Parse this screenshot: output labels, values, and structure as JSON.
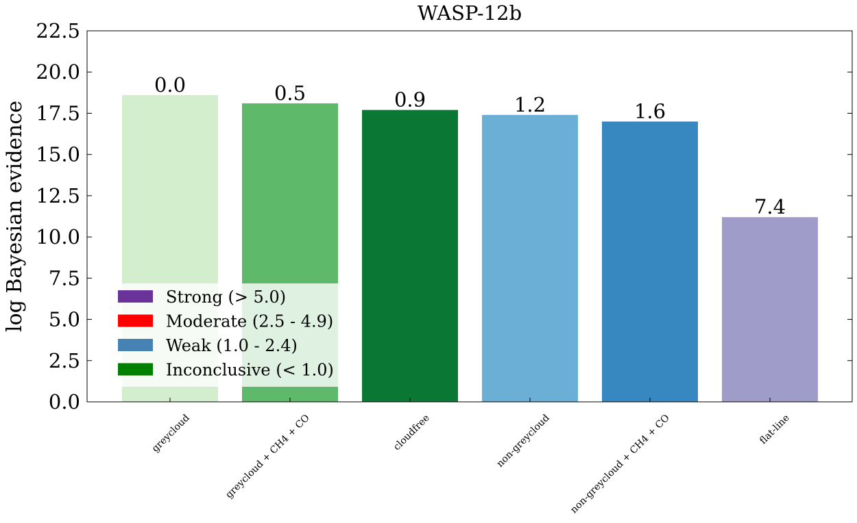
{
  "chart_data": {
    "type": "bar",
    "title": "WASP-12b",
    "xlabel": "",
    "ylabel": "log Bayesian evidence",
    "ylim": [
      0,
      22.5
    ],
    "yticks": [
      "0.0",
      "2.5",
      "5.0",
      "7.5",
      "10.0",
      "12.5",
      "15.0",
      "17.5",
      "20.0",
      "22.5"
    ],
    "categories": [
      "greycloud",
      "greycloud + CH4 + CO",
      "cloudfree",
      "non-greycloud",
      "non-greycloud + CH4 + CO",
      "flat-line"
    ],
    "values": [
      18.6,
      18.1,
      17.7,
      17.4,
      17.0,
      11.2
    ],
    "bar_labels": [
      "0.0",
      "0.5",
      "0.9",
      "1.2",
      "1.6",
      "7.4"
    ],
    "bar_colors": [
      "#d3eecd",
      "#5fb96b",
      "#0b7734",
      "#6baed6",
      "#3788c1",
      "#9f9cca"
    ],
    "legend": {
      "position": "lower-left",
      "entries": [
        {
          "label": "Strong (> 5.0)",
          "color": "#6a339a"
        },
        {
          "label": "Moderate (2.5 - 4.9)",
          "color": "#ff0000"
        },
        {
          "label": "Weak (1.0 - 2.4)",
          "color": "#4682b4"
        },
        {
          "label": "Inconclusive (< 1.0)",
          "color": "#008000"
        }
      ]
    },
    "grid": false
  }
}
